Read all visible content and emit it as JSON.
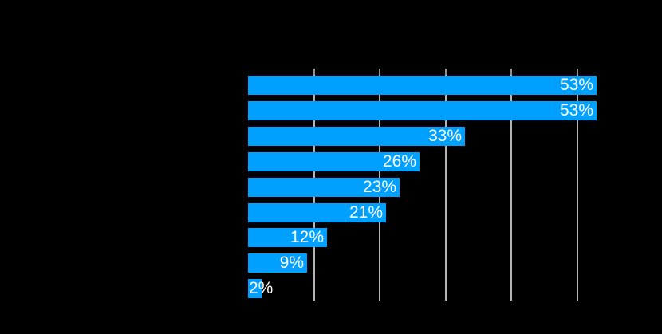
{
  "background_color": "#000000",
  "chart_data": {
    "type": "bar",
    "orientation": "horizontal",
    "title": "",
    "xlabel": "",
    "ylabel": "",
    "categories": [
      "",
      "",
      "",
      "",
      "",
      "",
      "",
      "",
      ""
    ],
    "values": [
      53,
      53,
      33,
      26,
      23,
      21,
      12,
      9,
      2
    ],
    "value_labels": [
      "53%",
      "53%",
      "33%",
      "26%",
      "23%",
      "21%",
      "12%",
      "9%",
      "2%"
    ],
    "xlim": [
      0,
      60
    ],
    "gridline_values": [
      10,
      20,
      30,
      40,
      50
    ],
    "grid": true,
    "legend": "none",
    "bar_color": "#00A0FF",
    "gridline_color": "#B4B4B4",
    "tick_color": "#919191",
    "label_color": "#FFFFFF"
  }
}
